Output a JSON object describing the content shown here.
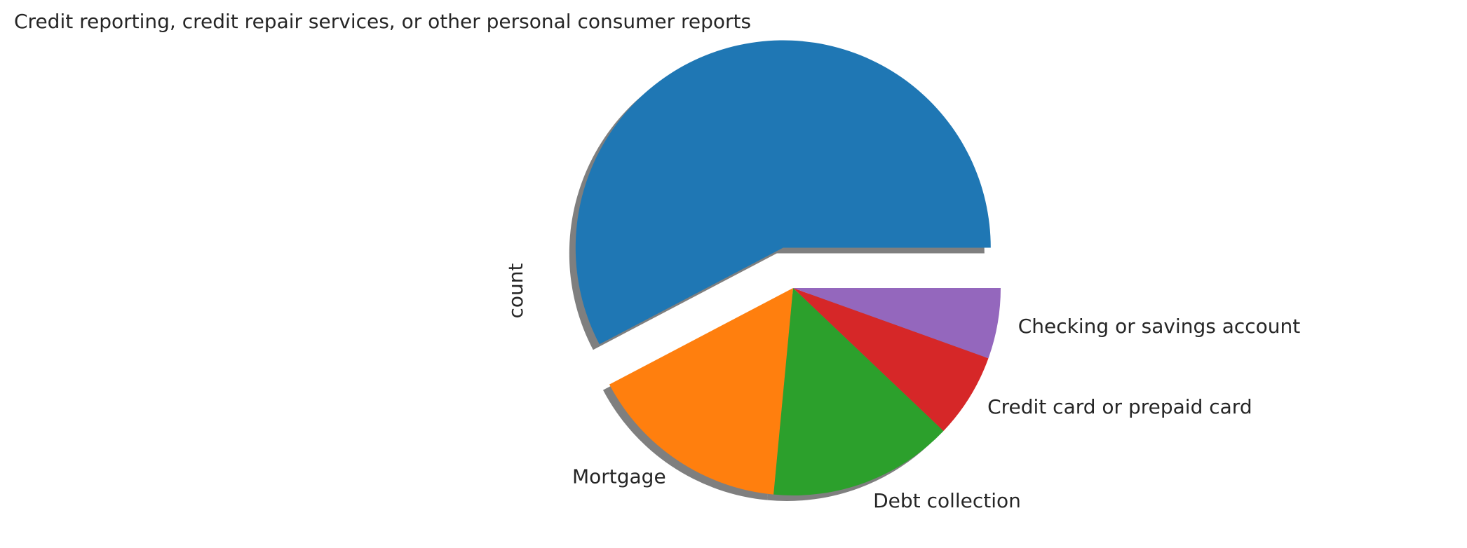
{
  "chart_data": {
    "type": "pie",
    "ylabel": "count",
    "categories": [
      "Credit reporting, credit repair services, or other personal consumer reports",
      "Mortgage",
      "Debt collection",
      "Credit card or prepaid card",
      "Checking or savings account"
    ],
    "values": [
      57.7,
      15.8,
      14.4,
      6.6,
      5.5
    ],
    "colors": [
      "#1f77b4",
      "#ff7f0e",
      "#2ca02c",
      "#d62728",
      "#9467bd"
    ],
    "explode": [
      0.2,
      0,
      0,
      0,
      0
    ],
    "shadow": true
  }
}
